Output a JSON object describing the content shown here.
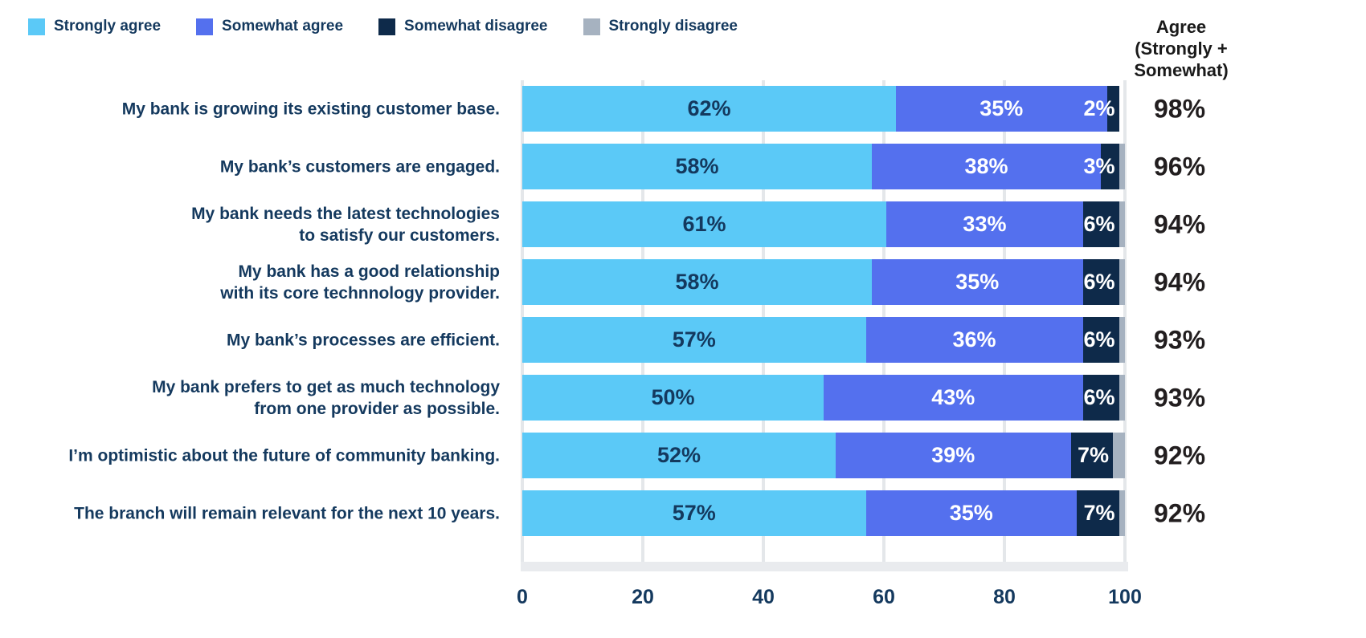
{
  "chart_data": {
    "type": "bar",
    "orientation": "horizontal",
    "stacked": true,
    "title": "",
    "xlabel": "",
    "ylabel": "",
    "xlim": [
      0,
      100
    ],
    "x_ticks": [
      "0",
      "20",
      "40",
      "60",
      "80",
      "100"
    ],
    "grid": true,
    "legend_position": "top-left",
    "categories": [
      "My bank is growing its existing customer base.",
      "My bank’s customers are engaged.",
      "My bank needs the latest technologies\nto satisfy our customers.",
      "My bank has a good relationship\nwith its core technnology provider.",
      "My bank’s processes are efficient.",
      "My bank prefers to get as much technology\nfrom one provider as possible.",
      "I’m optimistic about the future of community banking.",
      "The branch will remain relevant for the next 10 years."
    ],
    "series": [
      {
        "name": "Strongly agree",
        "color": "#5BC9F7",
        "values": [
          62,
          58,
          61,
          58,
          57,
          50,
          52,
          57
        ],
        "labels": [
          "62%",
          "58%",
          "61%",
          "58%",
          "57%",
          "50%",
          "52%",
          "57%"
        ]
      },
      {
        "name": "Somewhat agree",
        "color": "#5470EE",
        "values": [
          35,
          38,
          33,
          35,
          36,
          43,
          39,
          35
        ],
        "labels": [
          "35%",
          "38%",
          "33%",
          "35%",
          "36%",
          "43%",
          "39%",
          "35%"
        ]
      },
      {
        "name": "Somewhat disagree",
        "color": "#0E2A4A",
        "values": [
          2,
          3,
          6,
          6,
          6,
          6,
          7,
          7
        ],
        "labels": [
          "2%",
          "3%",
          "6%",
          "6%",
          "6%",
          "6%",
          "7%",
          "7%"
        ]
      },
      {
        "name": "Strongly disagree",
        "color": "#A6B2C0",
        "values": [
          0,
          1,
          1,
          1,
          1,
          1,
          2,
          1
        ],
        "labels": [
          "",
          "",
          "",
          "",
          "",
          "",
          "",
          ""
        ]
      }
    ],
    "agree_column": {
      "header": "Agree\n(Strongly +\nSomewhat)",
      "values": [
        "98%",
        "96%",
        "94%",
        "94%",
        "93%",
        "93%",
        "92%",
        "92%"
      ]
    }
  }
}
